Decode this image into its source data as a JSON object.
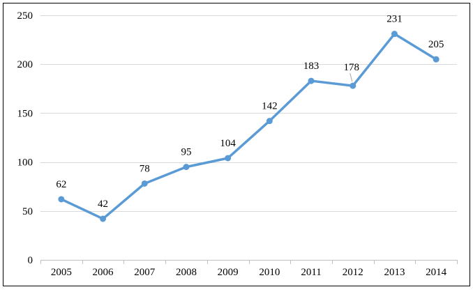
{
  "chart_data": {
    "type": "line",
    "categories": [
      "2005",
      "2006",
      "2007",
      "2008",
      "2009",
      "2010",
      "2011",
      "2012",
      "2013",
      "2014"
    ],
    "series": [
      {
        "values": [
          62,
          42,
          78,
          95,
          104,
          142,
          183,
          178,
          231,
          205
        ]
      }
    ],
    "data_labels": [
      "62",
      "42",
      "78",
      "95",
      "104",
      "142",
      "183",
      "178",
      "231",
      "205"
    ],
    "y_ticks": [
      "0",
      "50",
      "100",
      "150",
      "200",
      "250"
    ],
    "ylim": [
      0,
      250
    ],
    "grid": true,
    "legend": "none",
    "colors": {
      "line": "#5b9bd5",
      "grid": "#d9d9d9",
      "axis": "#bfbfbf",
      "text": "#000000",
      "border": "#000000"
    }
  }
}
